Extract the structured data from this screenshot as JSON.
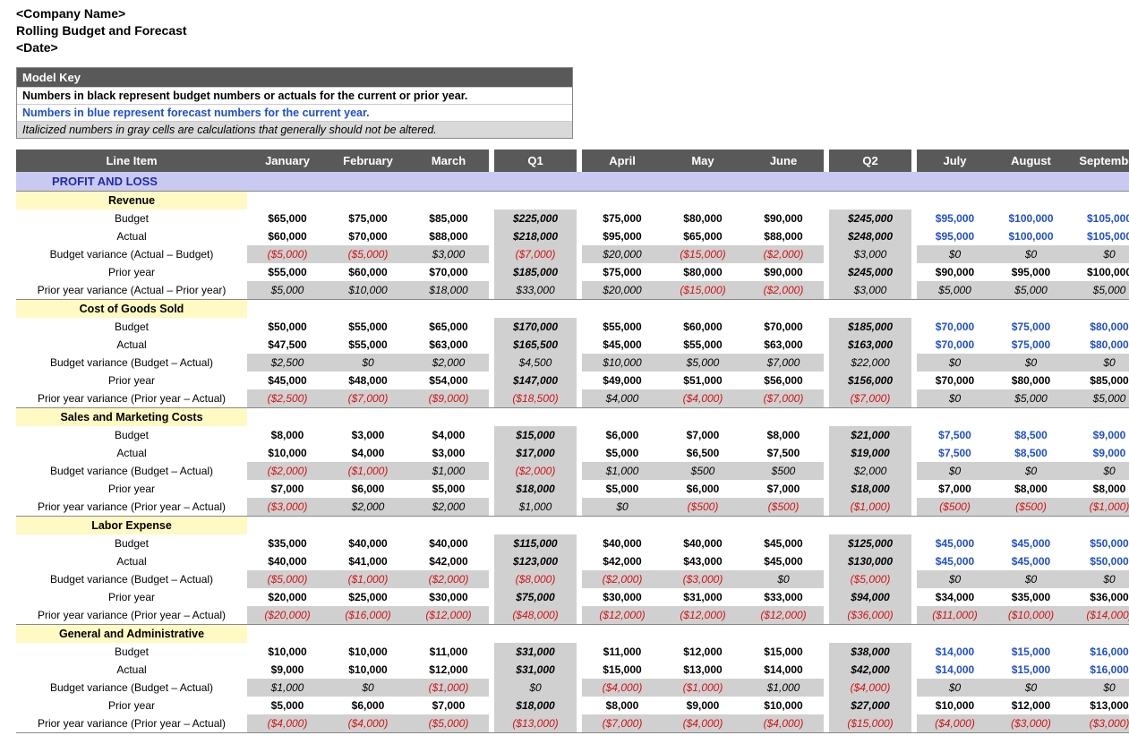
{
  "header": {
    "company": "<Company Name>",
    "title": "Rolling Budget and Forecast",
    "date": "<Date>"
  },
  "modelKey": {
    "title": "Model Key",
    "black": "Numbers in black represent budget numbers or actuals for the current or prior year.",
    "blue": "Numbers in blue represent forecast numbers for the current year.",
    "gray": "Italicized numbers in gray cells are calculations that generally should not be altered."
  },
  "columns": {
    "lineItem": "Line Item",
    "months": [
      "January",
      "February",
      "March",
      "Q1",
      "April",
      "May",
      "June",
      "Q2",
      "July",
      "August",
      "September"
    ],
    "qFlags": [
      false,
      false,
      false,
      true,
      false,
      false,
      false,
      true,
      false,
      false,
      false
    ],
    "fcFlags": [
      false,
      false,
      false,
      false,
      false,
      false,
      false,
      false,
      true,
      true,
      true
    ]
  },
  "plTitle": "PROFIT AND LOSS",
  "colors": {
    "headerBg": "#595959",
    "headerText": "#ffffff",
    "plBg": "#c9c9f2",
    "plText": "#1f2ca8",
    "sectionBg": "#fff9c4",
    "calcBg": "#d0d0d0",
    "negative": "#d11313",
    "forecast": "#1f4fd1"
  },
  "sections": [
    {
      "name": "Revenue",
      "rows": [
        {
          "label": "Budget",
          "bold": true,
          "calc": false,
          "values": [
            65000,
            75000,
            85000,
            225000,
            75000,
            80000,
            90000,
            245000,
            95000,
            100000,
            105000
          ]
        },
        {
          "label": "Actual",
          "bold": true,
          "calc": false,
          "values": [
            60000,
            70000,
            88000,
            218000,
            95000,
            65000,
            88000,
            248000,
            95000,
            100000,
            105000
          ]
        },
        {
          "label": "Budget variance (Actual – Budget)",
          "bold": false,
          "calc": true,
          "values": [
            -5000,
            -5000,
            3000,
            -7000,
            20000,
            -15000,
            -2000,
            3000,
            0,
            0,
            0
          ]
        },
        {
          "label": "Prior year",
          "bold": true,
          "calc": false,
          "noFc": true,
          "values": [
            55000,
            60000,
            70000,
            185000,
            75000,
            80000,
            90000,
            245000,
            90000,
            95000,
            100000
          ]
        },
        {
          "label": "Prior year variance (Actual – Prior year)",
          "bold": false,
          "calc": true,
          "values": [
            5000,
            10000,
            18000,
            33000,
            20000,
            -15000,
            -2000,
            3000,
            5000,
            5000,
            5000
          ]
        }
      ]
    },
    {
      "name": "Cost of Goods Sold",
      "rows": [
        {
          "label": "Budget",
          "bold": true,
          "calc": false,
          "values": [
            50000,
            55000,
            65000,
            170000,
            55000,
            60000,
            70000,
            185000,
            70000,
            75000,
            80000
          ]
        },
        {
          "label": "Actual",
          "bold": true,
          "calc": false,
          "values": [
            47500,
            55000,
            63000,
            165500,
            45000,
            55000,
            63000,
            163000,
            70000,
            75000,
            80000
          ]
        },
        {
          "label": "Budget variance (Budget – Actual)",
          "bold": false,
          "calc": true,
          "values": [
            2500,
            0,
            2000,
            4500,
            10000,
            5000,
            7000,
            22000,
            0,
            0,
            0
          ]
        },
        {
          "label": "Prior year",
          "bold": true,
          "calc": false,
          "noFc": true,
          "values": [
            45000,
            48000,
            54000,
            147000,
            49000,
            51000,
            56000,
            156000,
            70000,
            80000,
            85000
          ]
        },
        {
          "label": "Prior year variance (Prior year – Actual)",
          "bold": false,
          "calc": true,
          "values": [
            -2500,
            -7000,
            -9000,
            -18500,
            4000,
            -4000,
            -7000,
            -7000,
            0,
            5000,
            5000
          ]
        }
      ]
    },
    {
      "name": "Sales and Marketing Costs",
      "rows": [
        {
          "label": "Budget",
          "bold": true,
          "calc": false,
          "values": [
            8000,
            3000,
            4000,
            15000,
            6000,
            7000,
            8000,
            21000,
            7500,
            8500,
            9000
          ]
        },
        {
          "label": "Actual",
          "bold": true,
          "calc": false,
          "values": [
            10000,
            4000,
            3000,
            17000,
            5000,
            6500,
            7500,
            19000,
            7500,
            8500,
            9000
          ]
        },
        {
          "label": "Budget variance (Budget – Actual)",
          "bold": false,
          "calc": true,
          "values": [
            -2000,
            -1000,
            1000,
            -2000,
            1000,
            500,
            500,
            2000,
            0,
            0,
            0
          ]
        },
        {
          "label": "Prior year",
          "bold": true,
          "calc": false,
          "noFc": true,
          "values": [
            7000,
            6000,
            5000,
            18000,
            5000,
            6000,
            7000,
            18000,
            7000,
            8000,
            8000
          ]
        },
        {
          "label": "Prior year variance (Prior year – Actual)",
          "bold": false,
          "calc": true,
          "values": [
            -3000,
            2000,
            2000,
            1000,
            0,
            -500,
            -500,
            -1000,
            -500,
            -500,
            -1000
          ]
        }
      ]
    },
    {
      "name": "Labor Expense",
      "rows": [
        {
          "label": "Budget",
          "bold": true,
          "calc": false,
          "values": [
            35000,
            40000,
            40000,
            115000,
            40000,
            40000,
            45000,
            125000,
            45000,
            45000,
            50000
          ]
        },
        {
          "label": "Actual",
          "bold": true,
          "calc": false,
          "values": [
            40000,
            41000,
            42000,
            123000,
            42000,
            43000,
            45000,
            130000,
            45000,
            45000,
            50000
          ]
        },
        {
          "label": "Budget variance (Budget – Actual)",
          "bold": false,
          "calc": true,
          "values": [
            -5000,
            -1000,
            -2000,
            -8000,
            -2000,
            -3000,
            0,
            -5000,
            0,
            0,
            0
          ]
        },
        {
          "label": "Prior year",
          "bold": true,
          "calc": false,
          "noFc": true,
          "values": [
            20000,
            25000,
            30000,
            75000,
            30000,
            31000,
            33000,
            94000,
            34000,
            35000,
            36000
          ]
        },
        {
          "label": "Prior year variance (Prior year – Actual)",
          "bold": false,
          "calc": true,
          "values": [
            -20000,
            -16000,
            -12000,
            -48000,
            -12000,
            -12000,
            -12000,
            -36000,
            -11000,
            -10000,
            -14000
          ]
        }
      ]
    },
    {
      "name": "General and Administrative",
      "rows": [
        {
          "label": "Budget",
          "bold": true,
          "calc": false,
          "values": [
            10000,
            10000,
            11000,
            31000,
            11000,
            12000,
            15000,
            38000,
            14000,
            15000,
            16000
          ]
        },
        {
          "label": "Actual",
          "bold": true,
          "calc": false,
          "values": [
            9000,
            10000,
            12000,
            31000,
            15000,
            13000,
            14000,
            42000,
            14000,
            15000,
            16000
          ]
        },
        {
          "label": "Budget variance (Budget – Actual)",
          "bold": false,
          "calc": true,
          "values": [
            1000,
            0,
            -1000,
            0,
            -4000,
            -1000,
            1000,
            -4000,
            0,
            0,
            0
          ]
        },
        {
          "label": "Prior year",
          "bold": true,
          "calc": false,
          "noFc": true,
          "values": [
            5000,
            6000,
            7000,
            18000,
            8000,
            9000,
            10000,
            27000,
            10000,
            12000,
            13000
          ]
        },
        {
          "label": "Prior year variance (Prior year – Actual)",
          "bold": false,
          "calc": true,
          "values": [
            -4000,
            -4000,
            -5000,
            -13000,
            -7000,
            -4000,
            -4000,
            -15000,
            -4000,
            -3000,
            -3000
          ]
        }
      ]
    }
  ]
}
